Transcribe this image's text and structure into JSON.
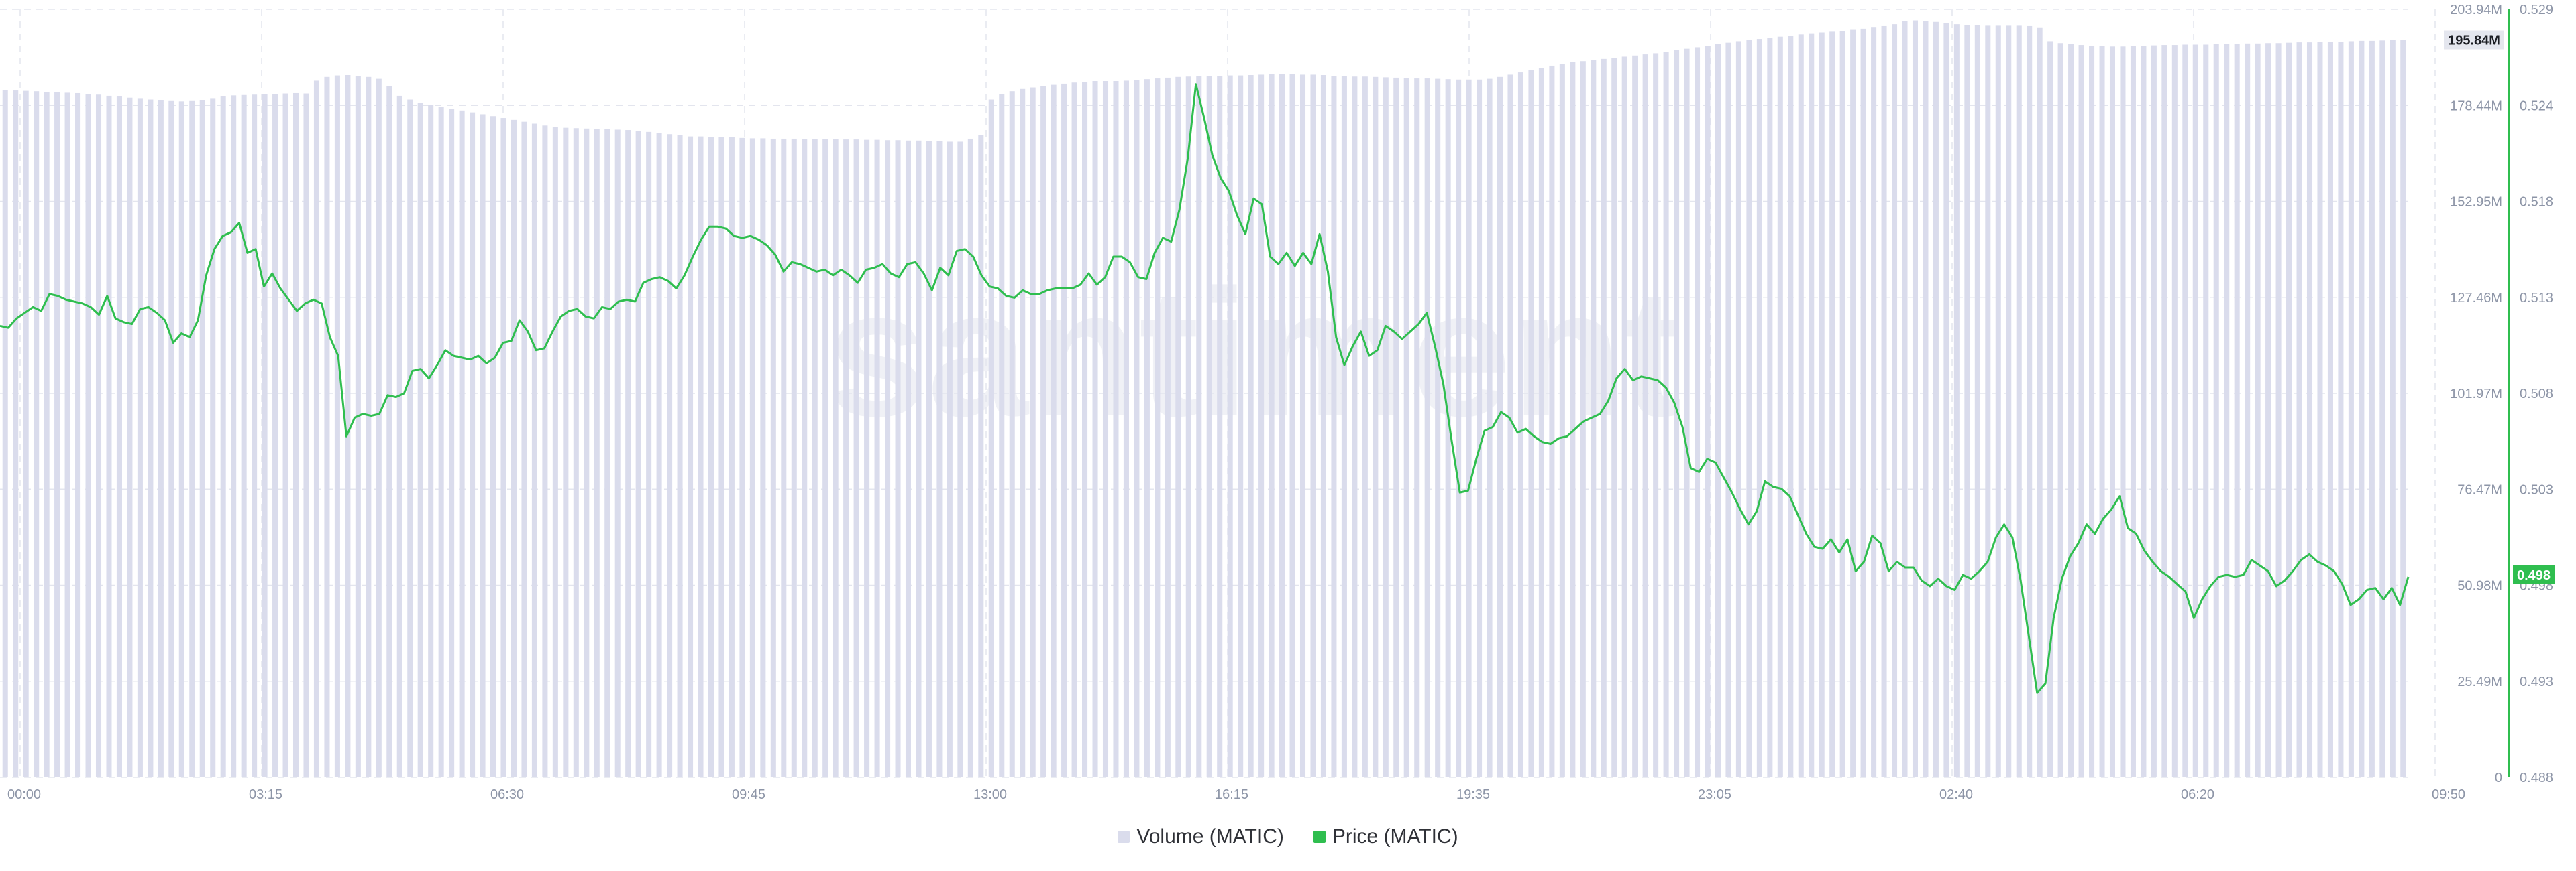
{
  "chart_data": {
    "type": "bar+line",
    "watermark": "santiment",
    "x_ticks": [
      "00:00",
      "03:15",
      "06:30",
      "09:45",
      "13:00",
      "16:15",
      "19:35",
      "23:05",
      "02:40",
      "06:20",
      "09:50"
    ],
    "y_left_ticks": [
      "0",
      "25.49M",
      "50.98M",
      "76.47M",
      "101.97M",
      "127.46M",
      "152.95M",
      "178.44M",
      "203.94M"
    ],
    "y_left_lim": [
      0,
      203.94
    ],
    "y_right_ticks": [
      "0.488",
      "0.493",
      "0.498",
      "0.503",
      "0.508",
      "0.513",
      "0.518",
      "0.524",
      "0.529"
    ],
    "y_right_lim": [
      0.488,
      0.529
    ],
    "last_volume_label": "195.84M",
    "last_price_label": "0.498",
    "series": [
      {
        "name": "Volume (MATIC)",
        "kind": "bar",
        "axis": "left",
        "color": "#dadcec",
        "values": [
          182.5,
          182.4,
          182.3,
          182.2,
          182.0,
          181.9,
          181.8,
          181.7,
          181.5,
          181.3,
          181.0,
          180.8,
          180.5,
          180.2,
          180.0,
          179.8,
          179.6,
          179.5,
          179.6,
          179.8,
          180.2,
          180.8,
          181.1,
          181.2,
          181.3,
          181.4,
          181.5,
          181.6,
          181.7,
          181.6,
          185.0,
          186.0,
          186.4,
          186.5,
          186.3,
          186.0,
          185.5,
          183.5,
          181.0,
          180.0,
          179.2,
          178.6,
          178.1,
          177.6,
          177.1,
          176.6,
          176.1,
          175.6,
          175.1,
          174.6,
          174.1,
          173.6,
          173.1,
          172.7,
          172.5,
          172.4,
          172.3,
          172.2,
          172.1,
          172.0,
          171.9,
          171.7,
          171.4,
          171.1,
          170.8,
          170.5,
          170.2,
          170.2,
          170.1,
          170.0,
          170.0,
          169.8,
          169.7,
          169.7,
          169.6,
          169.6,
          169.6,
          169.5,
          169.5,
          169.5,
          169.5,
          169.4,
          169.4,
          169.3,
          169.3,
          169.2,
          169.2,
          169.1,
          169.1,
          169.0,
          168.9,
          168.8,
          168.8,
          169.6,
          170.6,
          180.0,
          181.5,
          182.2,
          182.8,
          183.2,
          183.6,
          183.9,
          184.2,
          184.5,
          184.7,
          184.9,
          184.9,
          184.9,
          185.0,
          185.2,
          185.4,
          185.6,
          185.8,
          186.0,
          186.1,
          186.2,
          186.3,
          186.3,
          186.4,
          186.4,
          186.5,
          186.6,
          186.7,
          186.7,
          186.7,
          186.6,
          186.6,
          186.5,
          186.3,
          186.2,
          186.1,
          186.1,
          186.0,
          185.9,
          185.8,
          185.7,
          185.6,
          185.6,
          185.5,
          185.4,
          185.3,
          185.3,
          185.3,
          185.5,
          186.0,
          186.6,
          187.2,
          187.8,
          188.4,
          189.0,
          189.5,
          189.9,
          190.2,
          190.5,
          190.8,
          191.1,
          191.4,
          191.7,
          192.0,
          192.3,
          192.7,
          193.1,
          193.5,
          193.9,
          194.3,
          194.7,
          195.1,
          195.5,
          195.8,
          196.1,
          196.4,
          196.7,
          197.0,
          197.3,
          197.6,
          197.8,
          198.0,
          198.2,
          198.5,
          198.8,
          199.1,
          199.5,
          200.0,
          200.8,
          201.0,
          200.8,
          200.6,
          200.3,
          200.0,
          199.8,
          199.7,
          199.6,
          199.6,
          199.6,
          199.6,
          199.5,
          199.0,
          195.5,
          195.0,
          194.7,
          194.5,
          194.3,
          194.2,
          194.1,
          194.1,
          194.2,
          194.3,
          194.4,
          194.5,
          194.5,
          194.6,
          194.6,
          194.6,
          194.7,
          194.7,
          194.8,
          194.9,
          194.9,
          195.0,
          195.0,
          195.1,
          195.2,
          195.2,
          195.3,
          195.4,
          195.4,
          195.5,
          195.6,
          195.6,
          195.7,
          195.8,
          195.84
        ]
      },
      {
        "name": "Price (MATIC)",
        "kind": "line",
        "axis": "right",
        "color": "#2fbe4f",
        "values": [
          0.5121,
          0.512,
          0.5125,
          0.5128,
          0.5131,
          0.5129,
          0.5138,
          0.5137,
          0.5135,
          0.5134,
          0.5133,
          0.5131,
          0.5127,
          0.5137,
          0.5125,
          0.5123,
          0.5122,
          0.513,
          0.5131,
          0.5128,
          0.5124,
          0.5112,
          0.5117,
          0.5115,
          0.5124,
          0.5148,
          0.5162,
          0.5169,
          0.5171,
          0.5176,
          0.516,
          0.5162,
          0.5142,
          0.5149,
          0.5141,
          0.5135,
          0.5129,
          0.5133,
          0.5135,
          0.5133,
          0.5115,
          0.5105,
          0.5062,
          0.5072,
          0.5074,
          0.5073,
          0.5074,
          0.5084,
          0.5083,
          0.5085,
          0.5097,
          0.5098,
          0.5093,
          0.51,
          0.5108,
          0.5105,
          0.5104,
          0.5103,
          0.5105,
          0.5101,
          0.5104,
          0.5112,
          0.5113,
          0.5124,
          0.5118,
          0.5108,
          0.5109,
          0.5118,
          0.5126,
          0.5129,
          0.513,
          0.5126,
          0.5125,
          0.5131,
          0.513,
          0.5134,
          0.5135,
          0.5134,
          0.5144,
          0.5146,
          0.5147,
          0.5145,
          0.5141,
          0.5148,
          0.5158,
          0.5167,
          0.5174,
          0.5174,
          0.5173,
          0.5169,
          0.5168,
          0.5169,
          0.5167,
          0.5164,
          0.5159,
          0.515,
          0.5155,
          0.5154,
          0.5152,
          0.515,
          0.5151,
          0.5148,
          0.5151,
          0.5148,
          0.5144,
          0.5151,
          0.5152,
          0.5154,
          0.5149,
          0.5147,
          0.5154,
          0.5155,
          0.5149,
          0.514,
          0.5152,
          0.5148,
          0.5161,
          0.5162,
          0.5158,
          0.5148,
          0.5142,
          0.5141,
          0.5137,
          0.5136,
          0.514,
          0.5138,
          0.5138,
          0.514,
          0.5141,
          0.5141,
          0.5141,
          0.5143,
          0.5149,
          0.5143,
          0.5147,
          0.5158,
          0.5158,
          0.5155,
          0.5147,
          0.5146,
          0.516,
          0.5168,
          0.5166,
          0.5183,
          0.521,
          0.525,
          0.5232,
          0.5212,
          0.52,
          0.5193,
          0.518,
          0.517,
          0.5189,
          0.5186,
          0.5158,
          0.5154,
          0.516,
          0.5153,
          0.516,
          0.5154,
          0.517,
          0.515,
          0.5115,
          0.51,
          0.511,
          0.5118,
          0.5105,
          0.5108,
          0.5121,
          0.5118,
          0.5114,
          0.5118,
          0.5122,
          0.5128,
          0.511,
          0.509,
          0.506,
          0.5032,
          0.5033,
          0.505,
          0.5065,
          0.5067,
          0.5075,
          0.5072,
          0.5064,
          0.5066,
          0.5062,
          0.5059,
          0.5058,
          0.5061,
          0.5062,
          0.5066,
          0.507,
          0.5072,
          0.5074,
          0.5081,
          0.5093,
          0.5098,
          0.5092,
          0.5094,
          0.5093,
          0.5092,
          0.5088,
          0.508,
          0.5067,
          0.5045,
          0.5043,
          0.505,
          0.5048,
          0.504,
          0.5032,
          0.5023,
          0.5015,
          0.5022,
          0.5038,
          0.5035,
          0.5034,
          0.503,
          0.502,
          0.501,
          0.5003,
          0.5002,
          0.5007,
          0.5,
          0.5007,
          0.499,
          0.4995,
          0.5009,
          0.5005,
          0.499,
          0.4995,
          0.4992,
          0.4992,
          0.4985,
          0.4982,
          0.4986,
          0.4982,
          0.498,
          0.4988,
          0.4986,
          0.499,
          0.4995,
          0.5008,
          0.5015,
          0.5008,
          0.4985,
          0.4955,
          0.4925,
          0.493,
          0.4965,
          0.4986,
          0.4998,
          0.5005,
          0.5015,
          0.501,
          0.5018,
          0.5023,
          0.503,
          0.5013,
          0.501,
          0.5001,
          0.4995,
          0.499,
          0.4987,
          0.4983,
          0.4979,
          0.4965,
          0.4975,
          0.4982,
          0.4987,
          0.4988,
          0.4987,
          0.4988,
          0.4996,
          0.4993,
          0.499,
          0.4982,
          0.4985,
          0.499,
          0.4996,
          0.4999,
          0.4995,
          0.4993,
          0.499,
          0.4983,
          0.4972,
          0.4975,
          0.498,
          0.4981,
          0.4975,
          0.4981,
          0.4972,
          0.4987
        ]
      }
    ]
  },
  "legend": [
    {
      "label": "Volume (MATIC)",
      "color": "#dadcec"
    },
    {
      "label": "Price (MATIC)",
      "color": "#2fbe4f"
    }
  ]
}
